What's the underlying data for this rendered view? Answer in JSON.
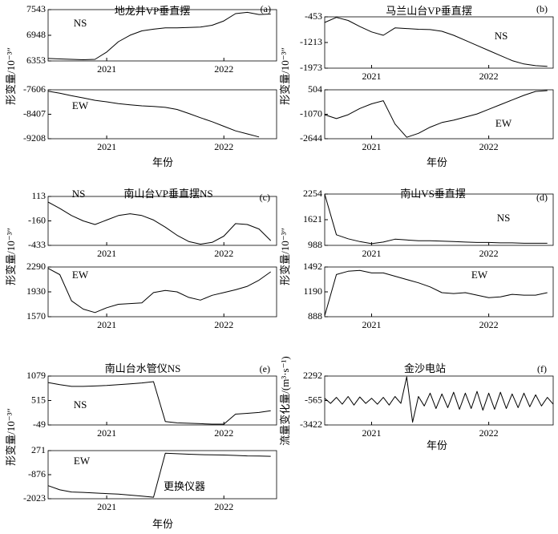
{
  "chart_data": [
    {
      "type": "line",
      "title": "地龙井VP垂直摆",
      "panel": "(a)",
      "label": "NS",
      "ylabel": "形变量/10⁻³″",
      "color": "#000",
      "x": [
        2020.5,
        2020.6,
        2020.7,
        2020.8,
        2020.9,
        2021.0,
        2021.1,
        2021.2,
        2021.3,
        2021.4,
        2021.5,
        2021.6,
        2021.7,
        2021.8,
        2021.9,
        2022.0,
        2022.1,
        2022.2,
        2022.3,
        2022.4
      ],
      "values": [
        6410,
        6400,
        6390,
        6380,
        6390,
        6560,
        6800,
        6950,
        7050,
        7090,
        7120,
        7120,
        7130,
        7140,
        7180,
        7280,
        7450,
        7480,
        7430,
        7440
      ],
      "xlim": [
        2020.5,
        2022.45
      ],
      "xticks": [
        2021,
        2022
      ],
      "ylim": [
        6353,
        7543
      ],
      "yticks": [
        6353,
        6948,
        7543
      ]
    },
    {
      "type": "line",
      "label": "EW",
      "xlabel": "年份",
      "color": "#000",
      "x": [
        2020.5,
        2020.6,
        2020.7,
        2020.8,
        2020.9,
        2021.0,
        2021.1,
        2021.2,
        2021.3,
        2021.4,
        2021.5,
        2021.6,
        2021.7,
        2021.8,
        2021.9,
        2022.0,
        2022.1,
        2022.2,
        2022.3,
        2022.4
      ],
      "values": [
        -7650,
        -7720,
        -7800,
        -7870,
        -7950,
        -8000,
        -8060,
        -8100,
        -8130,
        -8150,
        -8180,
        -8250,
        -8380,
        -8520,
        -8650,
        -8800,
        -8950,
        -9050,
        -9150,
        null
      ],
      "xlim": [
        2020.5,
        2022.45
      ],
      "xticks": [
        2021,
        2022
      ],
      "ylim": [
        -9208,
        -7606
      ],
      "yticks": [
        -9208,
        -8407,
        -7606
      ]
    },
    {
      "type": "line",
      "title": "马兰山台VP垂直摆",
      "panel": "(b)",
      "label": "NS",
      "ylabel": "形变量/10⁻³″",
      "color": "#000",
      "x": [
        2020.6,
        2020.7,
        2020.8,
        2020.9,
        2021.0,
        2021.1,
        2021.2,
        2021.3,
        2021.4,
        2021.5,
        2021.6,
        2021.7,
        2021.8,
        2021.9,
        2022.0,
        2022.1,
        2022.2,
        2022.3,
        2022.4,
        2022.5
      ],
      "values": [
        -620,
        -470,
        -560,
        -740,
        -900,
        -1000,
        -780,
        -800,
        -820,
        -830,
        -880,
        -1000,
        -1150,
        -1300,
        -1450,
        -1600,
        -1750,
        -1850,
        -1900,
        -1920
      ],
      "xlim": [
        2020.6,
        2022.55
      ],
      "xticks": [
        2021,
        2022
      ],
      "ylim": [
        -1973,
        -453
      ],
      "yticks": [
        -1973,
        -1213,
        -453
      ]
    },
    {
      "type": "line",
      "label": "EW",
      "xlabel": "年份",
      "color": "#000",
      "x": [
        2020.6,
        2020.7,
        2020.8,
        2020.9,
        2021.0,
        2021.1,
        2021.2,
        2021.3,
        2021.4,
        2021.5,
        2021.6,
        2021.7,
        2021.8,
        2021.9,
        2022.0,
        2022.1,
        2022.2,
        2022.3,
        2022.4,
        2022.5
      ],
      "values": [
        -1100,
        -1350,
        -1100,
        -700,
        -400,
        -200,
        -1700,
        -2550,
        -2300,
        -1900,
        -1600,
        -1450,
        -1250,
        -1050,
        -750,
        -450,
        -150,
        150,
        400,
        450
      ],
      "xlim": [
        2020.6,
        2022.55
      ],
      "xticks": [
        2021,
        2022
      ],
      "ylim": [
        -2644,
        504
      ],
      "yticks": [
        -2644,
        -1070,
        504
      ]
    },
    {
      "type": "line",
      "title": "南山台VP垂直摆NS",
      "panel": "(c)",
      "label": "NS",
      "ylabel": "形变量/10⁻³″",
      "color": "#000",
      "x": [
        2020.5,
        2020.6,
        2020.7,
        2020.8,
        2020.9,
        2021.0,
        2021.1,
        2021.2,
        2021.3,
        2021.4,
        2021.5,
        2021.6,
        2021.7,
        2021.8,
        2021.9,
        2022.0,
        2022.1,
        2022.2,
        2022.3,
        2022.4
      ],
      "values": [
        50,
        -20,
        -100,
        -160,
        -200,
        -150,
        -100,
        -80,
        -100,
        -150,
        -230,
        -320,
        -390,
        -420,
        -400,
        -330,
        -190,
        -200,
        -250,
        -380
      ],
      "xlim": [
        2020.5,
        2022.45
      ],
      "xticks": [
        2021,
        2022
      ],
      "ylim": [
        -433,
        113
      ],
      "yticks": [
        -433,
        -160,
        113
      ]
    },
    {
      "type": "line",
      "label": "EW",
      "color": "#000",
      "x": [
        2020.5,
        2020.6,
        2020.7,
        2020.8,
        2020.9,
        2021.0,
        2021.1,
        2021.2,
        2021.3,
        2021.4,
        2021.5,
        2021.6,
        2021.7,
        2021.8,
        2021.9,
        2022.0,
        2022.1,
        2022.2,
        2022.3,
        2022.4
      ],
      "values": [
        2270,
        2180,
        1800,
        1680,
        1630,
        1700,
        1750,
        1760,
        1770,
        1920,
        1950,
        1930,
        1850,
        1810,
        1880,
        1920,
        1960,
        2010,
        2100,
        2220
      ],
      "xlim": [
        2020.5,
        2022.45
      ],
      "xticks": [
        2021,
        2022
      ],
      "ylim": [
        1570,
        2290
      ],
      "yticks": [
        1570,
        1930,
        2290
      ]
    },
    {
      "type": "line",
      "title": "南山VS垂直摆",
      "panel": "(d)",
      "label": "NS",
      "ylabel": "形变量/10⁻³″",
      "color": "#000",
      "x": [
        2020.6,
        2020.7,
        2020.8,
        2020.9,
        2021.0,
        2021.1,
        2021.2,
        2021.3,
        2021.4,
        2021.5,
        2021.6,
        2021.7,
        2021.8,
        2021.9,
        2022.0,
        2022.1,
        2022.2,
        2022.3,
        2022.4,
        2022.5
      ],
      "values": [
        2250,
        1250,
        1150,
        1080,
        1030,
        1070,
        1140,
        1120,
        1100,
        1100,
        1090,
        1080,
        1070,
        1060,
        1060,
        1050,
        1050,
        1040,
        1040,
        1040
      ],
      "xlim": [
        2020.6,
        2022.55
      ],
      "xticks": [
        2021,
        2022
      ],
      "ylim": [
        988,
        2254
      ],
      "yticks": [
        988,
        1621,
        2254
      ]
    },
    {
      "type": "line",
      "label": "EW",
      "color": "#000",
      "x": [
        2020.6,
        2020.7,
        2020.8,
        2020.9,
        2021.0,
        2021.1,
        2021.2,
        2021.3,
        2021.4,
        2021.5,
        2021.6,
        2021.7,
        2021.8,
        2021.9,
        2022.0,
        2022.1,
        2022.2,
        2022.3,
        2022.4,
        2022.5
      ],
      "values": [
        900,
        1400,
        1440,
        1450,
        1420,
        1420,
        1380,
        1340,
        1300,
        1250,
        1180,
        1170,
        1180,
        1150,
        1120,
        1130,
        1160,
        1150,
        1150,
        1180
      ],
      "xlim": [
        2020.6,
        2022.55
      ],
      "xticks": [
        2021,
        2022
      ],
      "ylim": [
        888,
        1492
      ],
      "yticks": [
        888,
        1190,
        1492
      ]
    },
    {
      "type": "line",
      "title": "南山台水管仪NS",
      "panel": "(e)",
      "label": "NS",
      "ylabel": "形变量/10⁻³″",
      "color": "#000",
      "x": [
        2020.5,
        2020.6,
        2020.7,
        2020.8,
        2020.9,
        2021.0,
        2021.1,
        2021.2,
        2021.3,
        2021.4,
        2021.5,
        2021.6,
        2021.7,
        2021.8,
        2021.9,
        2022.0,
        2022.1,
        2022.2,
        2022.3,
        2022.4
      ],
      "values": [
        930,
        880,
        840,
        840,
        850,
        860,
        880,
        900,
        920,
        950,
        30,
        0,
        -10,
        -20,
        -30,
        -30,
        200,
        220,
        240,
        280
      ],
      "xlim": [
        2020.5,
        2022.45
      ],
      "xticks": [
        2021,
        2022
      ],
      "ylim": [
        -49,
        1079
      ],
      "yticks": [
        -49,
        515,
        1079
      ]
    },
    {
      "type": "line",
      "label": "EW",
      "xlabel": "年份",
      "annotation": "更换仪器",
      "color": "#000",
      "x": [
        2020.5,
        2020.6,
        2020.7,
        2020.8,
        2020.9,
        2021.0,
        2021.1,
        2021.2,
        2021.3,
        2021.4,
        2021.5,
        2021.6,
        2021.7,
        2021.8,
        2021.9,
        2022.0,
        2022.1,
        2022.2,
        2022.3,
        2022.4
      ],
      "values": [
        -1400,
        -1600,
        -1700,
        -1720,
        -1750,
        -1780,
        -1800,
        -1850,
        -1900,
        -1950,
        150,
        120,
        100,
        80,
        70,
        60,
        40,
        20,
        10,
        0
      ],
      "xlim": [
        2020.5,
        2022.45
      ],
      "xticks": [
        2021,
        2022
      ],
      "ylim": [
        -2023,
        271
      ],
      "yticks": [
        -2023,
        -876,
        271
      ]
    },
    {
      "type": "line",
      "title": "金沙电站",
      "panel": "(f)",
      "ylabel": "流量变化量/(m³·s⁻¹)",
      "xlabel": "年份",
      "color": "#000",
      "x": [
        2020.6,
        2020.65,
        2020.7,
        2020.75,
        2020.8,
        2020.85,
        2020.9,
        2020.95,
        2021.0,
        2021.05,
        2021.1,
        2021.15,
        2021.2,
        2021.25,
        2021.3,
        2021.35,
        2021.4,
        2021.45,
        2021.5,
        2021.55,
        2021.6,
        2021.65,
        2021.7,
        2021.75,
        2021.8,
        2021.85,
        2021.9,
        2021.95,
        2022.0,
        2022.05,
        2022.1,
        2022.15,
        2022.2,
        2022.25,
        2022.3,
        2022.35,
        2022.4,
        2022.45,
        2022.5,
        2022.55
      ],
      "values": [
        -300,
        -900,
        -200,
        -1000,
        -100,
        -1100,
        -150,
        -900,
        -300,
        -1000,
        -200,
        -1100,
        -100,
        -900,
        2200,
        -3100,
        -100,
        -1200,
        300,
        -1500,
        200,
        -1400,
        400,
        -1600,
        300,
        -1500,
        500,
        -1700,
        300,
        -1600,
        400,
        -1500,
        200,
        -1400,
        300,
        -1300,
        100,
        -1200,
        -200,
        -1000
      ],
      "xlim": [
        2020.6,
        2022.55
      ],
      "xticks": [
        2021,
        2022
      ],
      "ylim": [
        -3422,
        2292
      ],
      "yticks": [
        -3422,
        -565,
        2292
      ]
    }
  ]
}
